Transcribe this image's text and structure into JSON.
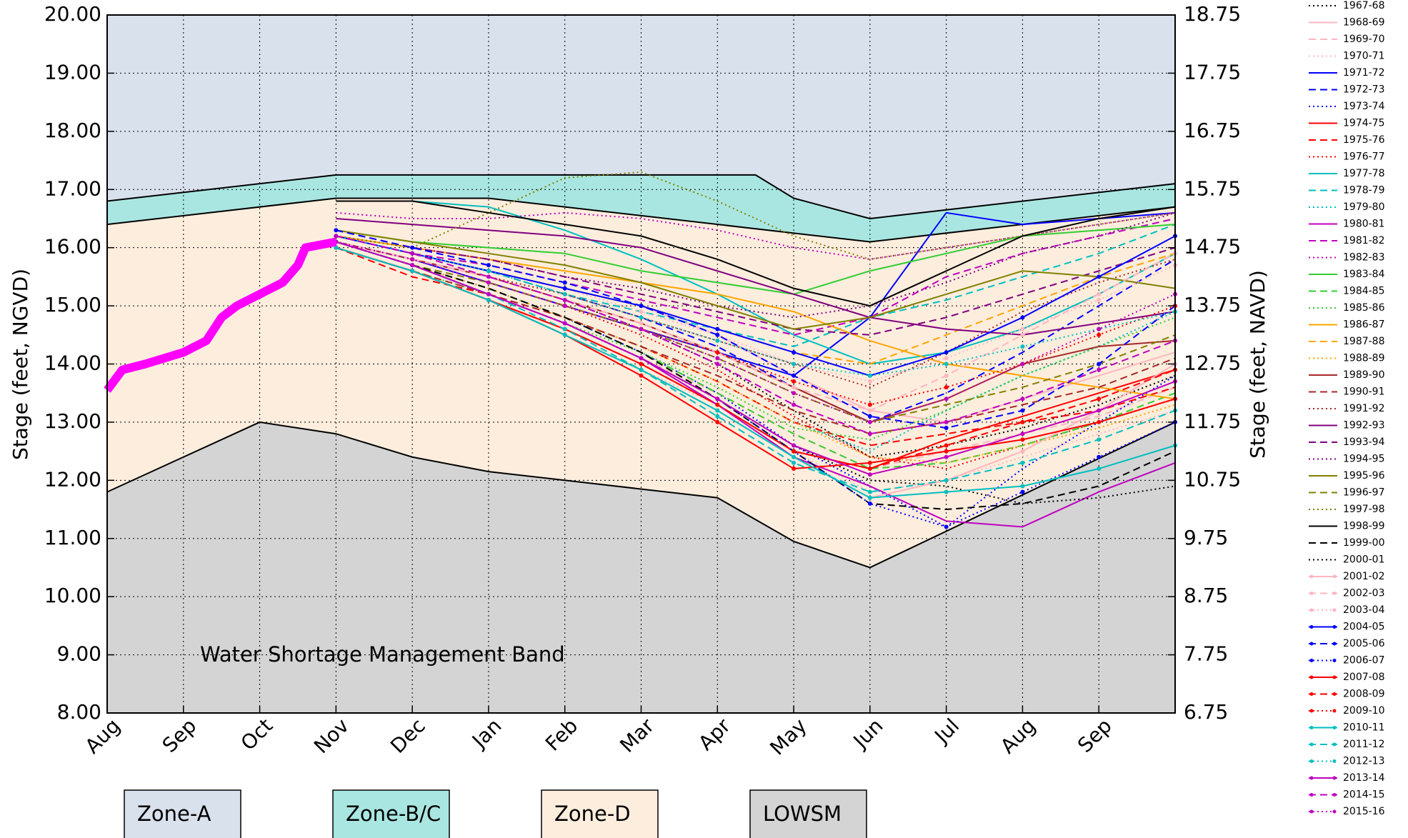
{
  "chart_data": {
    "type": "line",
    "annotation": "Water Shortage Management Band",
    "ylabel": "Stage (feet, NGVD)",
    "y2label": "Stage (feet, NAVD)",
    "xlim": [
      0,
      14
    ],
    "xticks": [
      {
        "value": 0,
        "label": "Aug"
      },
      {
        "value": 1,
        "label": "Sep"
      },
      {
        "value": 2,
        "label": "Oct"
      },
      {
        "value": 3,
        "label": "Nov"
      },
      {
        "value": 4,
        "label": "Dec"
      },
      {
        "value": 5,
        "label": "Jan"
      },
      {
        "value": 6,
        "label": "Feb"
      },
      {
        "value": 7,
        "label": "Mar"
      },
      {
        "value": 8,
        "label": "Apr"
      },
      {
        "value": 9,
        "label": "May"
      },
      {
        "value": 10,
        "label": "Jun"
      },
      {
        "value": 11,
        "label": "Jul"
      },
      {
        "value": 12,
        "label": "Aug"
      },
      {
        "value": 13,
        "label": "Sep"
      }
    ],
    "ylim": [
      8,
      20
    ],
    "yticks": [
      {
        "value": 8,
        "label": "8.00"
      },
      {
        "value": 9,
        "label": "9.00"
      },
      {
        "value": 10,
        "label": "10.00"
      },
      {
        "value": 11,
        "label": "11.00"
      },
      {
        "value": 12,
        "label": "12.00"
      },
      {
        "value": 13,
        "label": "13.00"
      },
      {
        "value": 14,
        "label": "14.00"
      },
      {
        "value": 15,
        "label": "15.00"
      },
      {
        "value": 16,
        "label": "16.00"
      },
      {
        "value": 17,
        "label": "17.00"
      },
      {
        "value": 18,
        "label": "18.00"
      },
      {
        "value": 19,
        "label": "19.00"
      },
      {
        "value": 20,
        "label": "20.00"
      }
    ],
    "y2lim": [
      6.75,
      18.75
    ],
    "y2ticks": [
      6.75,
      7.75,
      8.75,
      9.75,
      10.75,
      11.75,
      12.75,
      13.75,
      14.75,
      15.75,
      16.75,
      17.75,
      18.75
    ],
    "grid": true,
    "zones": [
      {
        "name": "Zone-A",
        "color": "#d9e1ed"
      },
      {
        "name": "Zone-B/C",
        "color": "#a9e6e1",
        "x": [
          0,
          3,
          8.5,
          9,
          10,
          14
        ],
        "values": [
          16.8,
          17.25,
          17.25,
          16.85,
          16.5,
          17.1
        ]
      },
      {
        "name": "Zone-D",
        "color": "#fdeddd",
        "x": [
          0,
          3,
          5,
          10,
          14
        ],
        "values": [
          16.4,
          16.85,
          16.85,
          16.1,
          16.7
        ]
      },
      {
        "name": "LOWSM",
        "color": "#d4d4d4",
        "x": [
          0,
          2,
          3,
          4,
          5,
          8,
          9,
          10,
          14
        ],
        "values": [
          11.8,
          13.0,
          12.8,
          12.4,
          12.15,
          11.7,
          10.95,
          10.5,
          13.0
        ]
      }
    ],
    "current": {
      "color": "#ff00ff",
      "x": [
        0,
        0.2,
        0.5,
        1.0,
        1.3,
        1.5,
        1.7,
        2.0,
        2.3,
        2.5,
        2.6,
        3.0
      ],
      "values": [
        13.55,
        13.9,
        14.0,
        14.2,
        14.4,
        14.8,
        15.0,
        15.2,
        15.4,
        15.7,
        16.0,
        16.1
      ]
    },
    "x": [
      3,
      4,
      5,
      6,
      7,
      8,
      9,
      10,
      11,
      12,
      13,
      14
    ],
    "series": [
      {
        "name": "1967-68",
        "color": "#000000",
        "style": "dotted",
        "values": [
          16.1,
          15.8,
          15.5,
          15.1,
          14.6,
          14.0,
          13.2,
          12.4,
          12.6,
          12.9,
          13.3,
          13.8
        ]
      },
      {
        "name": "1968-69",
        "color": "#ffb6c1",
        "style": "solid",
        "values": [
          16.2,
          15.9,
          15.6,
          15.3,
          15.0,
          14.5,
          13.8,
          13.2,
          13.0,
          13.4,
          13.8,
          14.2
        ]
      },
      {
        "name": "1969-70",
        "color": "#ffb6c1",
        "style": "dashed",
        "values": [
          16.1,
          15.7,
          15.2,
          14.7,
          14.1,
          13.5,
          12.8,
          12.2,
          12.5,
          12.8,
          13.1,
          13.6
        ]
      },
      {
        "name": "1970-71",
        "color": "#ffb6c1",
        "style": "dotted",
        "values": [
          16.0,
          15.6,
          15.1,
          14.5,
          13.9,
          13.3,
          12.5,
          11.8,
          12.0,
          12.4,
          12.8,
          13.2
        ]
      },
      {
        "name": "1971-72",
        "color": "#0000ff",
        "style": "solid",
        "values": [
          16.1,
          15.8,
          15.4,
          15.0,
          14.6,
          14.2,
          13.8,
          14.8,
          16.6,
          16.4,
          16.5,
          16.6
        ]
      },
      {
        "name": "1972-73",
        "color": "#0000ff",
        "style": "dashed",
        "values": [
          16.2,
          15.9,
          15.6,
          15.2,
          14.8,
          14.3,
          13.6,
          13.0,
          13.5,
          14.2,
          15.0,
          15.8
        ]
      },
      {
        "name": "1973-74",
        "color": "#0000ff",
        "style": "dotted",
        "values": [
          16.1,
          15.7,
          15.3,
          14.8,
          14.2,
          13.5,
          12.6,
          11.9,
          11.2,
          12.2,
          13.0,
          13.8
        ]
      },
      {
        "name": "1974-75",
        "color": "#ff0000",
        "style": "solid",
        "values": [
          16.0,
          15.6,
          15.1,
          14.6,
          14.0,
          13.3,
          12.5,
          12.2,
          12.7,
          13.1,
          13.5,
          13.9
        ]
      },
      {
        "name": "1975-76",
        "color": "#ff0000",
        "style": "dashed",
        "values": [
          16.0,
          15.5,
          15.2,
          14.8,
          14.3,
          13.7,
          13.0,
          12.6,
          12.8,
          13.0,
          13.2,
          13.6
        ]
      },
      {
        "name": "1976-77",
        "color": "#ff0000",
        "style": "dotted",
        "values": [
          16.1,
          15.8,
          15.4,
          15.0,
          14.5,
          13.9,
          13.1,
          12.4,
          12.2,
          12.6,
          13.0,
          13.4
        ]
      },
      {
        "name": "1977-78",
        "color": "#00bfbf",
        "style": "solid",
        "values": [
          16.8,
          16.8,
          16.7,
          16.3,
          15.8,
          15.2,
          14.5,
          14.0,
          14.2,
          14.6,
          15.2,
          15.9
        ]
      },
      {
        "name": "1978-79",
        "color": "#00bfbf",
        "style": "dashed",
        "values": [
          16.2,
          15.9,
          15.6,
          15.2,
          14.9,
          14.6,
          14.3,
          14.8,
          15.1,
          15.5,
          15.9,
          16.4
        ]
      },
      {
        "name": "1979-80",
        "color": "#00bfbf",
        "style": "dotted",
        "values": [
          16.1,
          15.7,
          15.3,
          14.8,
          14.3,
          13.7,
          13.0,
          12.5,
          13.2,
          13.8,
          14.3,
          14.9
        ]
      },
      {
        "name": "1980-81",
        "color": "#bf00bf",
        "style": "solid",
        "values": [
          16.1,
          15.7,
          15.2,
          14.7,
          14.1,
          13.3,
          12.4,
          11.9,
          11.3,
          11.2,
          11.8,
          12.3
        ]
      },
      {
        "name": "1981-82",
        "color": "#bf00bf",
        "style": "dashed",
        "values": [
          16.2,
          15.9,
          15.7,
          15.4,
          15.1,
          14.8,
          14.5,
          14.8,
          15.5,
          15.9,
          16.2,
          16.5
        ]
      },
      {
        "name": "1982-83",
        "color": "#bf00bf",
        "style": "dotted",
        "values": [
          16.6,
          16.5,
          16.5,
          16.6,
          16.5,
          16.3,
          16.0,
          15.8,
          16.0,
          16.2,
          16.4,
          16.6
        ]
      },
      {
        "name": "1983-84",
        "color": "#32cd32",
        "style": "solid",
        "values": [
          16.3,
          16.1,
          16.0,
          15.9,
          15.6,
          15.4,
          15.2,
          15.6,
          15.9,
          16.2,
          16.3,
          16.4
        ]
      },
      {
        "name": "1984-85",
        "color": "#32cd32",
        "style": "dashed",
        "values": [
          16.1,
          15.7,
          15.3,
          14.8,
          14.2,
          13.5,
          12.8,
          12.2,
          12.3,
          12.6,
          13.0,
          13.5
        ]
      },
      {
        "name": "1985-86",
        "color": "#32cd32",
        "style": "dotted",
        "values": [
          16.0,
          15.6,
          15.2,
          14.7,
          14.2,
          13.6,
          12.9,
          12.7,
          13.2,
          13.8,
          14.3,
          14.8
        ]
      },
      {
        "name": "1986-87",
        "color": "#ffa500",
        "style": "solid",
        "values": [
          16.2,
          16.0,
          15.8,
          15.6,
          15.4,
          15.2,
          14.9,
          14.4,
          14.0,
          13.8,
          13.6,
          13.4
        ]
      },
      {
        "name": "1987-88",
        "color": "#ffa500",
        "style": "dashed",
        "values": [
          16.2,
          15.9,
          15.6,
          15.3,
          15.0,
          14.6,
          14.2,
          14.0,
          14.5,
          15.0,
          15.5,
          15.9
        ]
      },
      {
        "name": "1988-89",
        "color": "#ffa500",
        "style": "dotted",
        "values": [
          16.1,
          15.7,
          15.3,
          14.8,
          14.3,
          13.7,
          13.0,
          12.4,
          12.3,
          12.6,
          12.9,
          13.3
        ]
      },
      {
        "name": "1989-90",
        "color": "#a52a2a",
        "style": "solid",
        "values": [
          16.1,
          15.8,
          15.5,
          15.1,
          14.7,
          14.2,
          13.6,
          13.0,
          13.4,
          14.0,
          14.3,
          14.4
        ]
      },
      {
        "name": "1990-91",
        "color": "#a52a2a",
        "style": "dashed",
        "values": [
          16.0,
          15.6,
          15.2,
          14.8,
          14.3,
          13.8,
          13.2,
          12.8,
          13.0,
          13.3,
          13.6,
          14.1
        ]
      },
      {
        "name": "1991-92",
        "color": "#a52a2a",
        "style": "dotted",
        "values": [
          16.1,
          15.8,
          15.5,
          15.2,
          14.8,
          14.4,
          14.0,
          13.6,
          14.2,
          14.9,
          15.4,
          15.8
        ]
      },
      {
        "name": "1992-93",
        "color": "#800080",
        "style": "solid",
        "values": [
          16.5,
          16.4,
          16.3,
          16.2,
          16.0,
          15.6,
          15.2,
          14.8,
          14.6,
          14.5,
          14.7,
          14.9
        ]
      },
      {
        "name": "1993-94",
        "color": "#800080",
        "style": "dashed",
        "values": [
          16.3,
          16.0,
          15.8,
          15.5,
          15.2,
          14.9,
          14.6,
          14.5,
          14.8,
          15.2,
          15.6,
          16.0
        ]
      },
      {
        "name": "1994-95",
        "color": "#800080",
        "style": "dotted",
        "values": [
          16.2,
          16.0,
          15.8,
          15.5,
          15.3,
          15.0,
          14.8,
          15.0,
          15.4,
          15.9,
          16.2,
          16.6
        ]
      },
      {
        "name": "1995-96",
        "color": "#808000",
        "style": "solid",
        "values": [
          16.3,
          16.1,
          15.9,
          15.7,
          15.4,
          15.0,
          14.6,
          14.8,
          15.2,
          15.6,
          15.5,
          15.3
        ]
      },
      {
        "name": "1996-97",
        "color": "#808000",
        "style": "dashed",
        "values": [
          16.1,
          15.7,
          15.4,
          15.0,
          14.6,
          14.1,
          13.5,
          13.0,
          13.3,
          13.6,
          14.0,
          14.5
        ]
      },
      {
        "name": "1997-98",
        "color": "#808000",
        "style": "dotted",
        "values": [
          16.2,
          16.0,
          16.6,
          17.2,
          17.3,
          16.8,
          16.2,
          15.8,
          16.0,
          16.2,
          16.4,
          16.6
        ]
      },
      {
        "name": "1998-99",
        "color": "#000000",
        "style": "solid",
        "values": [
          16.8,
          16.8,
          16.6,
          16.4,
          16.2,
          15.8,
          15.3,
          15.0,
          15.6,
          16.2,
          16.5,
          16.7
        ]
      },
      {
        "name": "1999-00",
        "color": "#000000",
        "style": "dashed",
        "values": [
          16.1,
          15.7,
          15.3,
          14.8,
          14.2,
          13.4,
          12.5,
          11.6,
          11.5,
          11.6,
          11.9,
          12.5
        ]
      },
      {
        "name": "2000-01",
        "color": "#000000",
        "style": "dotted",
        "values": [
          16.1,
          15.7,
          15.2,
          14.7,
          14.1,
          13.4,
          12.6,
          12.0,
          11.9,
          11.6,
          11.7,
          11.9
        ]
      },
      {
        "name": "2001-02",
        "color": "#ffb6c1",
        "style": "solid",
        "marker": true,
        "values": [
          16.0,
          15.6,
          15.1,
          14.5,
          13.9,
          13.2,
          12.4,
          11.7,
          12.0,
          12.5,
          13.2,
          14.0
        ]
      },
      {
        "name": "2002-03",
        "color": "#ffb6c1",
        "style": "dashed",
        "marker": true,
        "values": [
          16.1,
          15.8,
          15.5,
          15.1,
          14.7,
          14.2,
          13.6,
          13.2,
          13.8,
          14.5,
          15.2,
          15.9
        ]
      },
      {
        "name": "2003-04",
        "color": "#ffb6c1",
        "style": "dotted",
        "marker": true,
        "values": [
          16.2,
          15.9,
          15.6,
          15.3,
          14.9,
          14.5,
          14.0,
          13.7,
          14.1,
          14.6,
          15.1,
          15.7
        ]
      },
      {
        "name": "2004-05",
        "color": "#0000ff",
        "style": "solid",
        "marker": true,
        "values": [
          16.2,
          15.9,
          15.6,
          15.3,
          15.0,
          14.6,
          14.2,
          13.8,
          14.2,
          14.8,
          15.5,
          16.2
        ]
      },
      {
        "name": "2005-06",
        "color": "#0000ff",
        "style": "dashed",
        "marker": true,
        "values": [
          16.3,
          16.0,
          15.7,
          15.4,
          15.0,
          14.5,
          13.8,
          13.1,
          12.9,
          13.2,
          14.0,
          15.0
        ]
      },
      {
        "name": "2006-07",
        "color": "#0000ff",
        "style": "dotted",
        "marker": true,
        "values": [
          16.1,
          15.7,
          15.2,
          14.7,
          14.1,
          13.4,
          12.5,
          11.6,
          11.2,
          11.8,
          12.4,
          13.0
        ]
      },
      {
        "name": "2007-08",
        "color": "#ff0000",
        "style": "solid",
        "marker": true,
        "values": [
          16.0,
          15.6,
          15.1,
          14.5,
          13.8,
          13.0,
          12.2,
          12.3,
          12.5,
          12.7,
          13.0,
          13.4
        ]
      },
      {
        "name": "2008-09",
        "color": "#ff0000",
        "style": "dashed",
        "marker": true,
        "values": [
          16.0,
          15.6,
          15.1,
          14.6,
          14.0,
          13.3,
          12.5,
          12.2,
          12.6,
          13.0,
          13.4,
          13.9
        ]
      },
      {
        "name": "2009-10",
        "color": "#ff0000",
        "style": "dotted",
        "marker": true,
        "values": [
          16.1,
          15.8,
          15.4,
          15.0,
          14.6,
          14.2,
          13.7,
          13.3,
          13.6,
          14.0,
          14.5,
          15.0
        ]
      },
      {
        "name": "2010-11",
        "color": "#00bfbf",
        "style": "solid",
        "marker": true,
        "values": [
          16.0,
          15.6,
          15.1,
          14.5,
          13.9,
          13.2,
          12.4,
          11.7,
          11.8,
          11.9,
          12.2,
          12.6
        ]
      },
      {
        "name": "2011-12",
        "color": "#00bfbf",
        "style": "dashed",
        "marker": true,
        "values": [
          16.1,
          15.7,
          15.2,
          14.6,
          13.9,
          13.1,
          12.3,
          11.8,
          12.0,
          12.3,
          12.7,
          13.2
        ]
      },
      {
        "name": "2012-13",
        "color": "#00bfbf",
        "style": "dotted",
        "marker": true,
        "values": [
          16.2,
          15.9,
          15.6,
          15.2,
          14.8,
          14.4,
          14.0,
          13.8,
          14.0,
          14.3,
          14.6,
          14.9
        ]
      },
      {
        "name": "2013-14",
        "color": "#bf00bf",
        "style": "solid",
        "marker": true,
        "values": [
          16.1,
          15.7,
          15.2,
          14.7,
          14.1,
          13.4,
          12.6,
          12.1,
          12.4,
          12.8,
          13.2,
          13.7
        ]
      },
      {
        "name": "2014-15",
        "color": "#bf00bf",
        "style": "dashed",
        "marker": true,
        "values": [
          16.2,
          15.9,
          15.5,
          15.1,
          14.6,
          14.0,
          13.3,
          12.8,
          13.0,
          13.4,
          13.9,
          14.4
        ]
      },
      {
        "name": "2015-16",
        "color": "#bf00bf",
        "style": "dotted",
        "marker": true,
        "values": [
          16.1,
          15.8,
          15.4,
          15.0,
          14.6,
          14.1,
          13.5,
          13.0,
          13.4,
          14.0,
          14.6,
          15.2
        ]
      }
    ]
  }
}
